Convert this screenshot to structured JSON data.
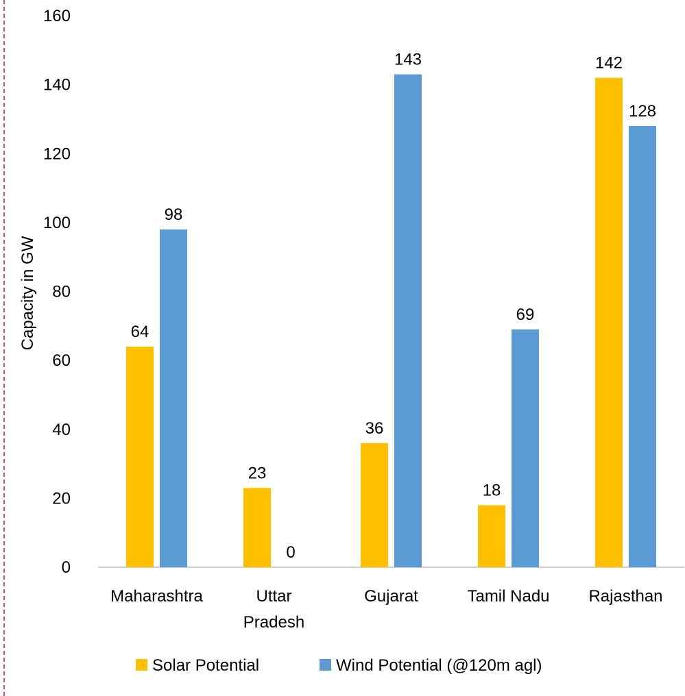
{
  "chart_data": {
    "type": "bar",
    "categories": [
      [
        "Maharashtra"
      ],
      [
        "Uttar",
        "Pradesh"
      ],
      [
        "Gujarat"
      ],
      [
        "Tamil Nadu"
      ],
      [
        "Rajasthan"
      ]
    ],
    "series": [
      {
        "name": "Solar Potential",
        "values": [
          64,
          23,
          36,
          18,
          142
        ],
        "color": "#FFC000"
      },
      {
        "name": "Wind Potential (@120m agl)",
        "values": [
          98,
          0,
          143,
          69,
          128
        ],
        "color": "#5B9BD5"
      }
    ],
    "ylabel": "Capacity in GW",
    "ylim": [
      0,
      160
    ],
    "yticks": [
      0,
      20,
      40,
      60,
      80,
      100,
      120,
      140,
      160
    ],
    "grid": false,
    "legend_position": "bottom"
  }
}
